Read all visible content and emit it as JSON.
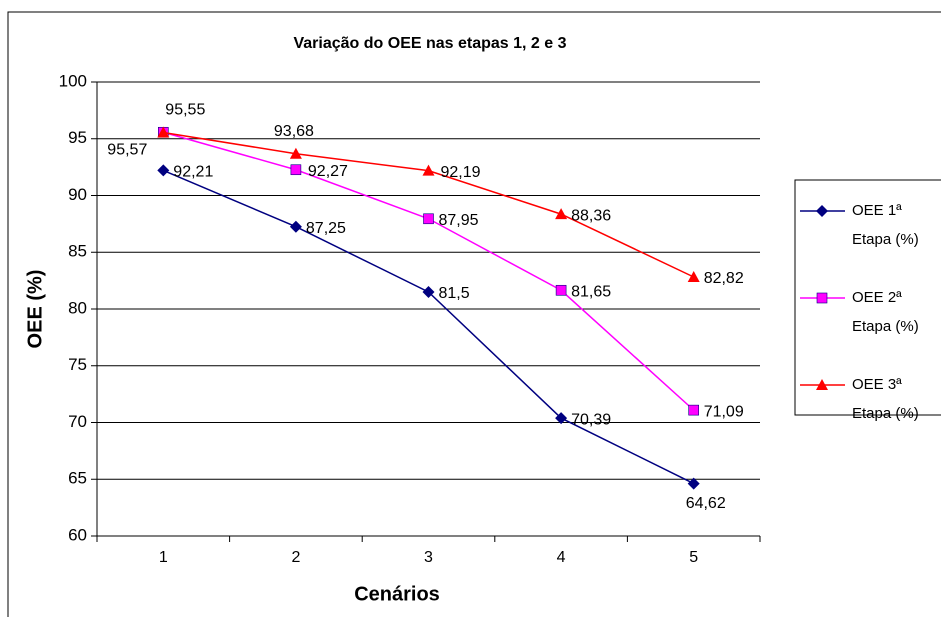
{
  "chart_data": {
    "type": "line",
    "title": "Variação do OEE nas etapas 1, 2 e 3",
    "x_label": "Cenários",
    "y_label": "OEE (%)",
    "categories": [
      "1",
      "2",
      "3",
      "4",
      "5"
    ],
    "series": [
      {
        "name": "OEE 1ª Etapa (%)",
        "color": "#000080",
        "marker": "diamond",
        "values": [
          92.21,
          87.25,
          81.5,
          70.39,
          64.62
        ],
        "value_labels": [
          "92,21",
          "87,25",
          "81,5",
          "70,39",
          "64,62"
        ]
      },
      {
        "name": "OEE 2ª Etapa (%)",
        "color": "#ff00ff",
        "marker": "square",
        "values": [
          95.57,
          92.27,
          87.95,
          81.65,
          71.09
        ],
        "value_labels": [
          "95,57",
          "92,27",
          "87,95",
          "81,65",
          "71,09"
        ]
      },
      {
        "name": "OEE 3ª Etapa (%)",
        "color": "#ff0000",
        "marker": "triangle",
        "values": [
          95.55,
          93.68,
          92.19,
          88.36,
          82.82
        ],
        "value_labels": [
          "95,55",
          "93,68",
          "92,19",
          "88,36",
          "82,82"
        ]
      }
    ],
    "ylim": [
      60,
      100
    ],
    "yticks": [
      60,
      65,
      70,
      75,
      80,
      85,
      90,
      95,
      100
    ],
    "grid": true,
    "legend": "right"
  }
}
